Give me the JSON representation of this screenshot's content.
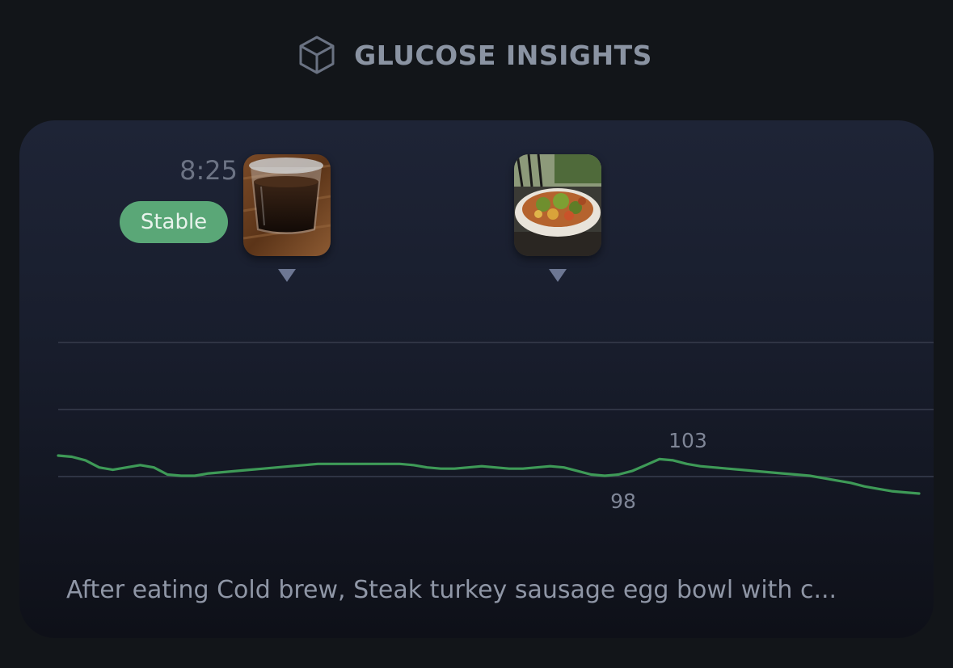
{
  "header": {
    "icon": "cube-icon",
    "title": "GLUCOSE INSIGHTS"
  },
  "card": {
    "time": "8:25",
    "status": {
      "label": "Stable",
      "color": "#5aa777"
    },
    "meals": [
      {
        "icon": "cold-brew-photo"
      },
      {
        "icon": "egg-bowl-photo"
      }
    ],
    "caption": "After eating Cold brew, Steak turkey sausage egg bowl with c..."
  },
  "chart_data": {
    "type": "line",
    "series": [
      {
        "color": "#3e9a57",
        "values": [
          100,
          99.9,
          99.6,
          99.0,
          98.8,
          99.0,
          99.2,
          99.0,
          98.4,
          98.3,
          98.3,
          98.5,
          98.6,
          98.7,
          98.8,
          98.9,
          99.0,
          99.1,
          99.2,
          99.3,
          99.3,
          99.3,
          99.3,
          99.3,
          99.3,
          99.3,
          99.2,
          99.0,
          98.9,
          98.9,
          99.0,
          99.1,
          99.0,
          98.9,
          98.9,
          99.0,
          99.1,
          99.0,
          98.7,
          98.4,
          98.3,
          98.4,
          98.7,
          99.2,
          99.7,
          99.6,
          99.3,
          99.1,
          99.0,
          98.9,
          98.8,
          98.7,
          98.6,
          98.5,
          98.4,
          98.3,
          98.1,
          97.9,
          97.7,
          97.4,
          97.2,
          97.0,
          96.9,
          96.8
        ]
      }
    ],
    "annotations": {
      "peak": {
        "value": 103
      },
      "low": {
        "value": 98
      }
    },
    "grid": true,
    "gridlines": 3
  }
}
